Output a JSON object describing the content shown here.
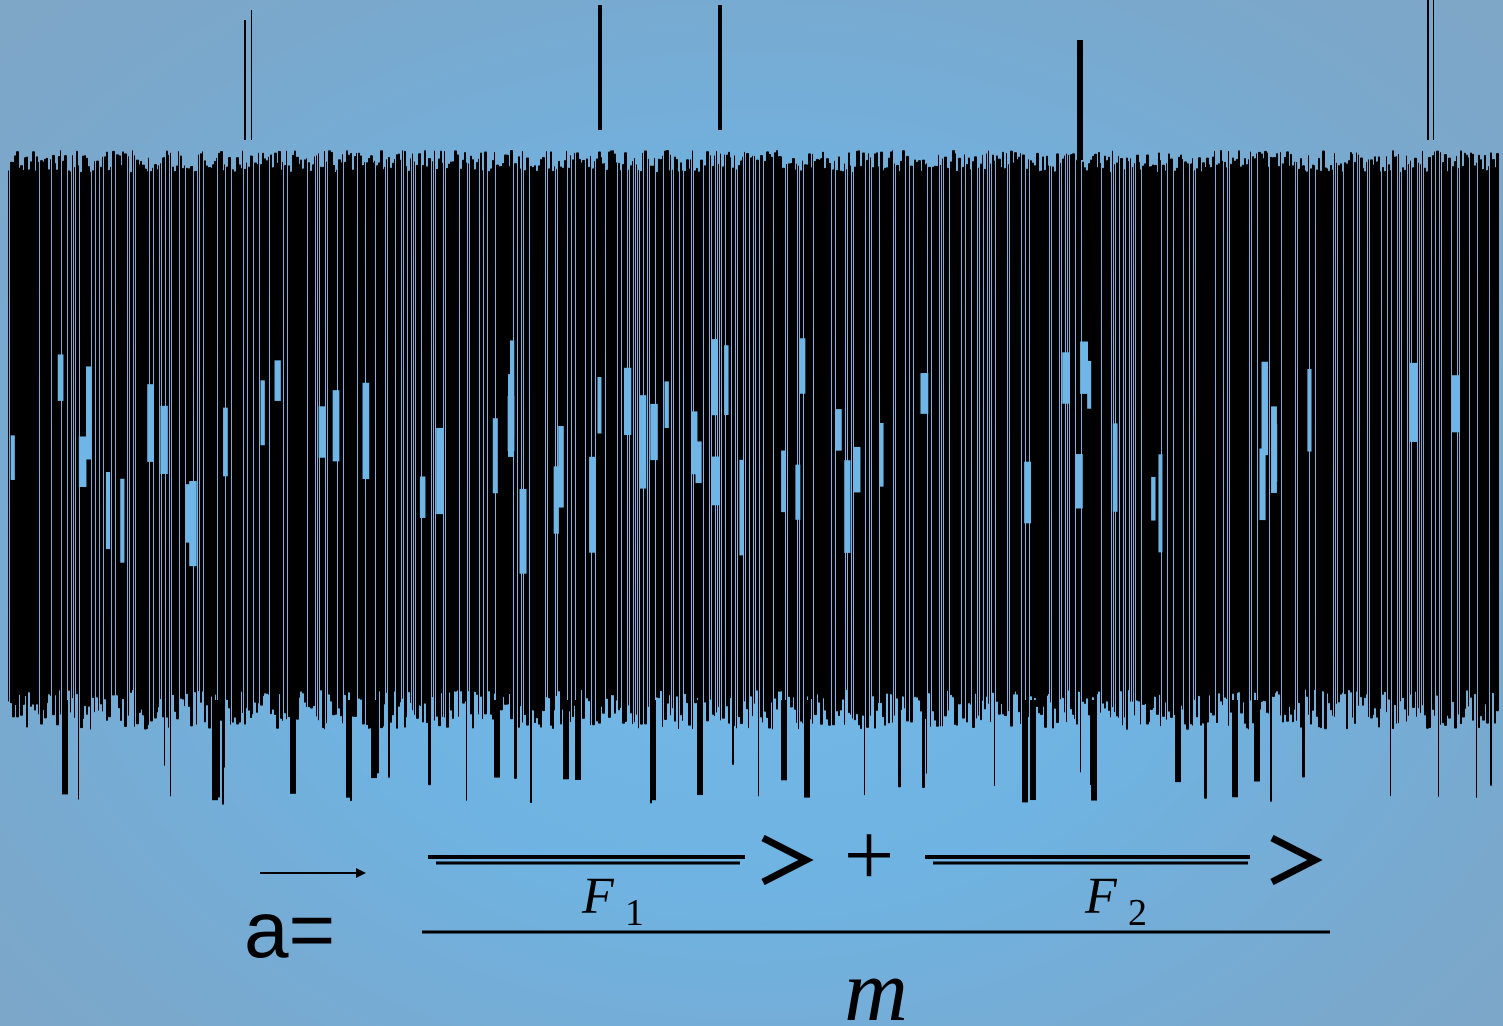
{
  "slide": {
    "background_color": "#74b9e9",
    "obscured_text_color": "#000000"
  },
  "formula": {
    "lhs": "a=",
    "numerator_term1_symbol": "F",
    "numerator_term1_subscript": "1",
    "plus_sign": "+",
    "numerator_term2_symbol": "F",
    "numerator_term2_subscript": "2",
    "denominator": "m"
  }
}
